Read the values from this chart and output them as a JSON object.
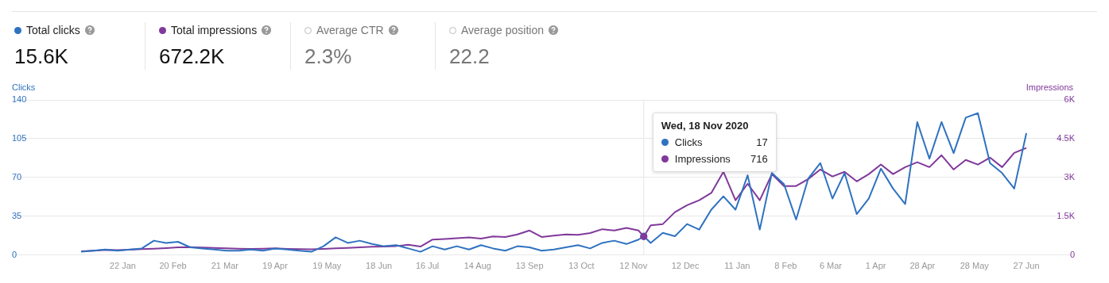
{
  "chart_data": [
    {
      "type": "other",
      "annotations": [
        "Total clicks",
        "15.6K",
        "Total impressions",
        "672.2K",
        "Average CTR",
        "2.3%",
        "Average position",
        "22.2"
      ]
    },
    {
      "type": "line",
      "ylabel": "Clicks",
      "y2label": "Impressions",
      "grid": "y",
      "marker": "none",
      "line_style": "solid",
      "legend": "top",
      "x": [
        "2019-12-29",
        "2020-01-05",
        "2020-01-12",
        "2020-01-19",
        "2020-01-26",
        "2020-02-02",
        "2020-02-09",
        "2020-02-16",
        "2020-02-23",
        "2020-03-01",
        "2020-03-08",
        "2020-03-15",
        "2020-03-22",
        "2020-03-29",
        "2020-04-05",
        "2020-04-12",
        "2020-04-19",
        "2020-04-26",
        "2020-05-03",
        "2020-05-10",
        "2020-05-17",
        "2020-05-24",
        "2020-05-31",
        "2020-06-07",
        "2020-06-14",
        "2020-06-21",
        "2020-06-28",
        "2020-07-05",
        "2020-07-12",
        "2020-07-19",
        "2020-07-26",
        "2020-08-02",
        "2020-08-09",
        "2020-08-16",
        "2020-08-23",
        "2020-08-30",
        "2020-09-06",
        "2020-09-13",
        "2020-09-20",
        "2020-09-27",
        "2020-10-04",
        "2020-10-11",
        "2020-10-18",
        "2020-10-25",
        "2020-11-01",
        "2020-11-08",
        "2020-11-15",
        "2020-11-18",
        "2020-11-22",
        "2020-11-29",
        "2020-12-06",
        "2020-12-13",
        "2020-12-20",
        "2020-12-27",
        "2021-01-03",
        "2021-01-10",
        "2021-01-17",
        "2021-01-24",
        "2021-01-31",
        "2021-02-07",
        "2021-02-14",
        "2021-02-21",
        "2021-02-28",
        "2021-03-07",
        "2021-03-14",
        "2021-03-21",
        "2021-03-28",
        "2021-04-04",
        "2021-04-11",
        "2021-04-18",
        "2021-04-25",
        "2021-05-02",
        "2021-05-09",
        "2021-05-16",
        "2021-05-23",
        "2021-05-30",
        "2021-06-06",
        "2021-06-13",
        "2021-06-20",
        "2021-06-27"
      ],
      "series": [
        {
          "name": "Clicks",
          "color": "#2f72c0",
          "values": [
            3,
            4,
            5,
            4,
            5,
            6,
            13,
            11,
            12,
            7,
            6,
            5,
            4,
            4,
            5,
            4,
            6,
            5,
            4,
            3,
            8,
            16,
            11,
            13,
            10,
            8,
            9,
            6,
            3,
            8,
            5,
            8,
            5,
            9,
            6,
            4,
            8,
            7,
            4,
            5,
            7,
            9,
            6,
            11,
            13,
            10,
            14,
            17,
            11,
            20,
            17,
            28,
            23,
            41,
            53,
            41,
            72,
            23,
            74,
            64,
            32,
            69,
            83,
            51,
            74,
            37,
            51,
            78,
            60,
            46,
            120,
            87,
            120,
            92,
            124,
            128,
            83,
            74,
            60,
            110
          ]
        },
        {
          "name": "Impressions",
          "color": "#80399a",
          "axis": "y2",
          "values": [
            150,
            170,
            200,
            190,
            210,
            230,
            250,
            270,
            300,
            310,
            290,
            280,
            260,
            250,
            240,
            250,
            260,
            240,
            230,
            220,
            240,
            260,
            280,
            300,
            320,
            330,
            350,
            400,
            330,
            600,
            620,
            650,
            680,
            640,
            720,
            700,
            800,
            950,
            700,
            750,
            800,
            780,
            850,
            1000,
            950,
            1050,
            950,
            716,
            1150,
            1200,
            1660,
            1930,
            2120,
            2400,
            3220,
            2120,
            2760,
            2120,
            3130,
            2670,
            2670,
            2940,
            3310,
            3040,
            3220,
            2850,
            3130,
            3500,
            3130,
            3400,
            3590,
            3400,
            3860,
            3310,
            3680,
            3500,
            3770,
            3400,
            3950,
            4140
          ]
        }
      ],
      "xlim": [
        "2019-11-19",
        "2021-07-25"
      ],
      "xticks": [
        {
          "value": "2020-01-22",
          "label": "22 Jan"
        },
        {
          "value": "2020-02-20",
          "label": "20 Feb"
        },
        {
          "value": "2020-03-21",
          "label": "21 Mar"
        },
        {
          "value": "2020-04-19",
          "label": "19 Apr"
        },
        {
          "value": "2020-05-19",
          "label": "19 May"
        },
        {
          "value": "2020-06-18",
          "label": "18 Jun"
        },
        {
          "value": "2020-07-16",
          "label": "16 Jul"
        },
        {
          "value": "2020-08-14",
          "label": "14 Aug"
        },
        {
          "value": "2020-09-13",
          "label": "13 Sep"
        },
        {
          "value": "2020-10-13",
          "label": "13 Oct"
        },
        {
          "value": "2020-11-12",
          "label": "12 Nov"
        },
        {
          "value": "2020-12-12",
          "label": "12 Dec"
        },
        {
          "value": "2021-01-11",
          "label": "11 Jan"
        },
        {
          "value": "2021-02-08",
          "label": "8 Feb"
        },
        {
          "value": "2021-03-06",
          "label": "6 Mar"
        },
        {
          "value": "2021-04-01",
          "label": "1 Apr"
        },
        {
          "value": "2021-04-28",
          "label": "28 Apr"
        },
        {
          "value": "2021-05-28",
          "label": "28 May"
        },
        {
          "value": "2021-06-27",
          "label": "27 Jun"
        }
      ],
      "ylim": [
        0,
        140
      ],
      "yticks": [
        0,
        35,
        70,
        105,
        140
      ],
      "y2lim": [
        0,
        6000
      ],
      "y2ticks": [
        {
          "value": 0,
          "label": "0"
        },
        {
          "value": 1500,
          "label": "1.5K"
        },
        {
          "value": 3000,
          "label": "3K"
        },
        {
          "value": 4500,
          "label": "4.5K"
        },
        {
          "value": 6000,
          "label": "6K"
        }
      ],
      "ref_lines": [
        {
          "axis": "x",
          "value": "2020-11-18",
          "color": "#e6e6e6"
        }
      ],
      "annotations": [
        {
          "text": "Wed, 18 Nov 2020",
          "x": "2020-11-18"
        },
        "17",
        "716"
      ]
    }
  ]
}
